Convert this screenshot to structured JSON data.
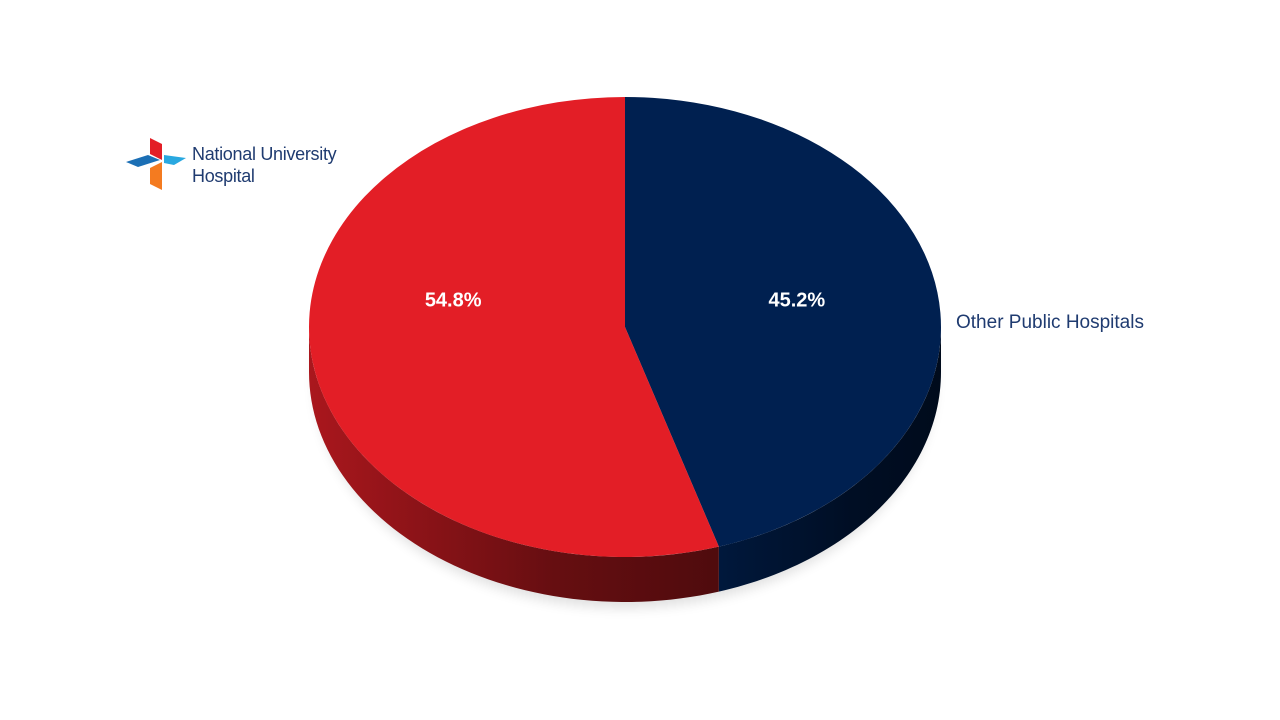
{
  "chart_data": {
    "type": "pie",
    "categories": [
      "Other Public Hospitals",
      "National University Hospital"
    ],
    "values": [
      45.2,
      54.8
    ],
    "value_labels": [
      "45.2%",
      "54.8%"
    ],
    "colors": [
      "#002050",
      "#e31e26"
    ]
  }
}
